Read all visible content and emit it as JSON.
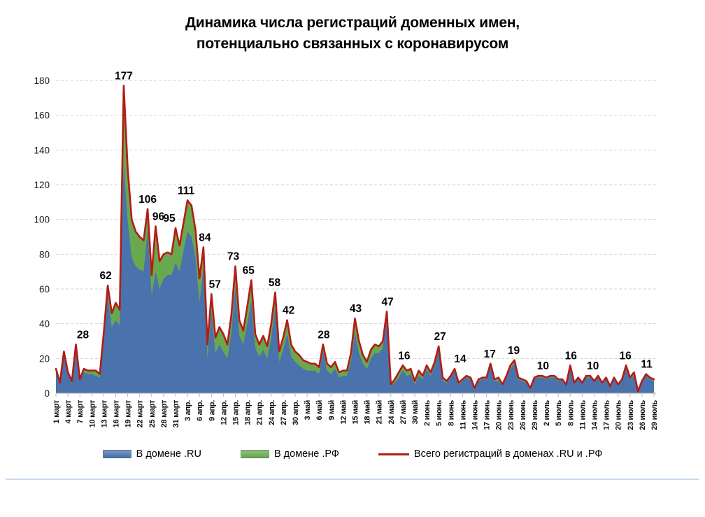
{
  "title": {
    "line1": "Динамика числа регистраций доменных имен,",
    "line2": "потенциально связанных с коронавирусом"
  },
  "chart_data": {
    "type": "area",
    "title": "Динамика числа регистраций доменных имен, потенциально связанных с коронавирусом",
    "ylim": [
      0,
      180
    ],
    "ytick_step": 20,
    "grid": "horizontal-dashed",
    "legend_position": "bottom",
    "x_start_date": "1 март",
    "x_end_date": "29 июль",
    "x_tick_every": 3,
    "x_tick_labels": [
      "1 март",
      "4 март",
      "7 март",
      "10 март",
      "13 март",
      "16 март",
      "19 март",
      "22 март",
      "25 март",
      "28 март",
      "31 март",
      "3 апр.",
      "6 апр.",
      "9 апр.",
      "12 апр.",
      "15 апр.",
      "18 апр.",
      "21 апр.",
      "24 апр.",
      "27 апр.",
      "30 апр.",
      "3 май",
      "6 май",
      "9 май",
      "12 май",
      "15 май",
      "18 май",
      "21 май",
      "24 май",
      "27 май",
      "30 май",
      "2 июнь",
      "5 июнь",
      "8 июнь",
      "11 июнь",
      "14 июнь",
      "17 июнь",
      "20 июнь",
      "23 июнь",
      "26 июнь",
      "29 июнь",
      "2 июль",
      "5 июль",
      "8 июль",
      "11 июль",
      "14 июль",
      "17 июль",
      "20 июль",
      "23 июль",
      "26 июль",
      "29 июль"
    ],
    "series": [
      {
        "name": "В домене .RU",
        "type": "area",
        "color": "#4a72ad",
        "values": [
          12,
          5,
          21,
          11,
          6,
          25,
          7,
          12,
          11,
          11,
          10,
          9,
          30,
          56,
          38,
          42,
          39,
          132,
          99,
          78,
          73,
          71,
          70,
          94,
          56,
          70,
          60,
          66,
          68,
          68,
          75,
          70,
          82,
          93,
          90,
          78,
          52,
          72,
          20,
          47,
          23,
          28,
          24,
          20,
          35,
          61,
          33,
          28,
          40,
          53,
          26,
          21,
          25,
          20,
          32,
          49,
          18,
          25,
          34,
          21,
          18,
          16,
          14,
          13,
          13,
          13,
          11,
          24,
          13,
          11,
          14,
          9,
          10,
          10,
          18,
          35,
          23,
          17,
          14,
          20,
          23,
          23,
          26,
          45,
          4,
          6,
          9,
          13,
          10,
          11,
          5,
          10,
          8,
          14,
          10,
          16,
          25,
          7,
          6,
          9,
          13,
          5,
          7,
          9,
          8,
          2,
          7,
          8,
          8,
          16,
          7,
          7,
          4,
          9,
          14,
          17,
          8,
          7,
          6,
          2,
          8,
          9,
          9,
          8,
          9,
          9,
          7,
          8,
          5,
          15,
          6,
          8,
          6,
          9,
          9,
          7,
          9,
          6,
          8,
          4,
          8,
          5,
          7,
          14,
          8,
          10,
          1,
          6,
          10,
          8,
          7
        ]
      },
      {
        "name": "В домене .РФ",
        "type": "area-stacked",
        "color": "#69a84f",
        "values": [
          2,
          1,
          3,
          1,
          1,
          3,
          1,
          2,
          2,
          2,
          3,
          2,
          5,
          6,
          8,
          10,
          9,
          45,
          30,
          22,
          20,
          19,
          18,
          12,
          12,
          26,
          16,
          14,
          13,
          12,
          20,
          15,
          16,
          18,
          18,
          16,
          14,
          12,
          8,
          10,
          9,
          10,
          10,
          8,
          10,
          12,
          9,
          8,
          10,
          12,
          8,
          7,
          8,
          7,
          8,
          9,
          6,
          7,
          8,
          7,
          6,
          6,
          5,
          5,
          4,
          4,
          4,
          4,
          4,
          4,
          4,
          3,
          3,
          3,
          5,
          8,
          7,
          5,
          4,
          5,
          5,
          4,
          4,
          2,
          1,
          2,
          3,
          3,
          3,
          3,
          2,
          3,
          2,
          2,
          2,
          2,
          2,
          2,
          1,
          1,
          1,
          1,
          1,
          1,
          1,
          1,
          1,
          1,
          1,
          1,
          1,
          2,
          1,
          1,
          2,
          2,
          1,
          1,
          1,
          1,
          1,
          1,
          1,
          1,
          1,
          1,
          1,
          0,
          0,
          1,
          0,
          1,
          0,
          1,
          1,
          0,
          1,
          0,
          1,
          0,
          1,
          0,
          1,
          2,
          1,
          2,
          0,
          1,
          1,
          1,
          1
        ]
      },
      {
        "name": "Всего регистраций в доменах .RU и .РФ",
        "type": "line-total",
        "color": "#b21d14"
      }
    ],
    "annotations": [
      {
        "text": "28",
        "day": 5,
        "dx": 10
      },
      {
        "text": "62",
        "day": 13,
        "dx": -3
      },
      {
        "text": "177",
        "day": 17,
        "dx": 0
      },
      {
        "text": "106",
        "day": 23,
        "dx": 0
      },
      {
        "text": "96",
        "day": 25,
        "dx": 4
      },
      {
        "text": "95",
        "day": 30,
        "dx": -9
      },
      {
        "text": "111",
        "day": 33,
        "dx": -2
      },
      {
        "text": "84",
        "day": 37,
        "dx": 2
      },
      {
        "text": "57",
        "day": 39,
        "dx": 5
      },
      {
        "text": "73",
        "day": 45,
        "dx": -3
      },
      {
        "text": "65",
        "day": 49,
        "dx": -4
      },
      {
        "text": "58",
        "day": 55,
        "dx": -1
      },
      {
        "text": "42",
        "day": 58,
        "dx": 2
      },
      {
        "text": "28",
        "day": 67,
        "dx": 1
      },
      {
        "text": "43",
        "day": 75,
        "dx": 1
      },
      {
        "text": "47",
        "day": 83,
        "dx": 1
      },
      {
        "text": "16",
        "day": 87,
        "dx": 2
      },
      {
        "text": "27",
        "day": 96,
        "dx": 2
      },
      {
        "text": "14",
        "day": 100,
        "dx": 8
      },
      {
        "text": "17",
        "day": 109,
        "dx": -1
      },
      {
        "text": "19",
        "day": 115,
        "dx": -1
      },
      {
        "text": "10",
        "day": 122,
        "dx": 1
      },
      {
        "text": "16",
        "day": 129,
        "dx": 1
      },
      {
        "text": "10",
        "day": 134,
        "dx": 4
      },
      {
        "text": "16",
        "day": 143,
        "dx": -1
      },
      {
        "text": "11",
        "day": 148,
        "dx": 1
      }
    ]
  },
  "legend": {
    "item_ru": "В домене .RU",
    "item_rf": "В домене .РФ",
    "item_total": "Всего регистраций в доменах .RU и .РФ"
  }
}
